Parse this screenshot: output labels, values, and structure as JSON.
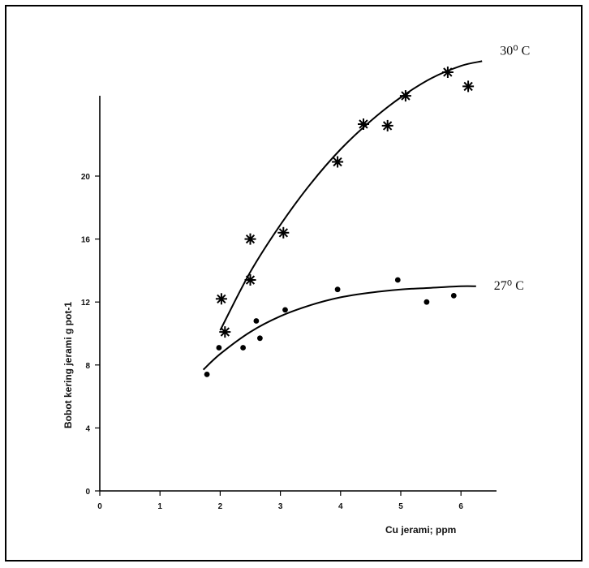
{
  "chart_data": {
    "type": "scatter",
    "xlabel": "Cu jerami; ppm",
    "ylabel": "Bobot kering jerami g pot-1",
    "xlim": [
      0,
      6.5
    ],
    "ylim": [
      0,
      25
    ],
    "x_ticks": [
      0,
      1,
      2,
      3,
      4,
      5,
      6
    ],
    "y_ticks": [
      0,
      4,
      8,
      12,
      16,
      20
    ],
    "grid": false,
    "legend": "none",
    "series": [
      {
        "name": "30⁰ C",
        "marker": "asterisk",
        "color": "#000000",
        "points": [
          {
            "x": 2.02,
            "y": 12.2
          },
          {
            "x": 2.08,
            "y": 10.1
          },
          {
            "x": 2.5,
            "y": 16.0
          },
          {
            "x": 2.5,
            "y": 13.4
          },
          {
            "x": 3.05,
            "y": 16.4
          },
          {
            "x": 3.95,
            "y": 20.9
          },
          {
            "x": 4.38,
            "y": 23.3
          },
          {
            "x": 4.78,
            "y": 23.2
          },
          {
            "x": 5.08,
            "y": 25.1
          },
          {
            "x": 5.78,
            "y": 26.6
          },
          {
            "x": 6.12,
            "y": 25.7
          }
        ],
        "fit_curve": [
          {
            "x": 2.0,
            "y": 10.2
          },
          {
            "x": 2.5,
            "y": 13.9
          },
          {
            "x": 3.0,
            "y": 16.9
          },
          {
            "x": 3.5,
            "y": 19.5
          },
          {
            "x": 4.0,
            "y": 21.7
          },
          {
            "x": 4.5,
            "y": 23.5
          },
          {
            "x": 5.0,
            "y": 25.0
          },
          {
            "x": 5.5,
            "y": 26.2
          },
          {
            "x": 6.0,
            "y": 27.0
          },
          {
            "x": 6.35,
            "y": 27.3
          }
        ]
      },
      {
        "name": "27⁰ C",
        "marker": "dot",
        "color": "#000000",
        "points": [
          {
            "x": 1.78,
            "y": 7.4
          },
          {
            "x": 1.98,
            "y": 9.1
          },
          {
            "x": 2.38,
            "y": 9.1
          },
          {
            "x": 2.6,
            "y": 10.8
          },
          {
            "x": 2.66,
            "y": 9.7
          },
          {
            "x": 3.08,
            "y": 11.5
          },
          {
            "x": 3.95,
            "y": 12.8
          },
          {
            "x": 4.95,
            "y": 13.4
          },
          {
            "x": 5.43,
            "y": 12.0
          },
          {
            "x": 5.88,
            "y": 12.4
          }
        ],
        "fit_curve": [
          {
            "x": 1.72,
            "y": 7.7
          },
          {
            "x": 2.0,
            "y": 8.7
          },
          {
            "x": 2.5,
            "y": 10.1
          },
          {
            "x": 3.0,
            "y": 11.1
          },
          {
            "x": 3.5,
            "y": 11.8
          },
          {
            "x": 4.0,
            "y": 12.3
          },
          {
            "x": 4.5,
            "y": 12.6
          },
          {
            "x": 5.0,
            "y": 12.8
          },
          {
            "x": 5.5,
            "y": 12.9
          },
          {
            "x": 6.0,
            "y": 13.0
          },
          {
            "x": 6.25,
            "y": 13.0
          }
        ]
      }
    ]
  }
}
